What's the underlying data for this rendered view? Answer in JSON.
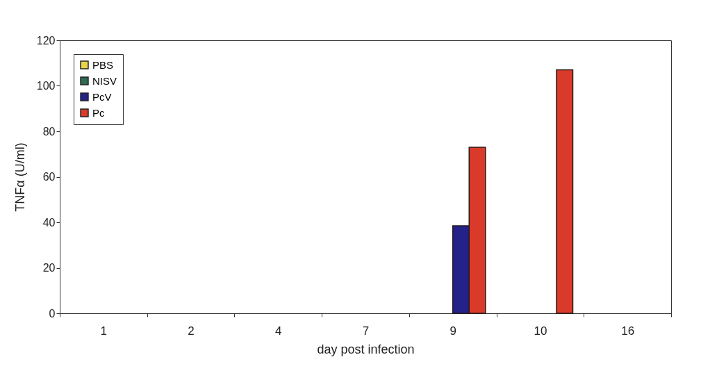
{
  "chart_data": {
    "type": "bar",
    "xlabel": "day post infection",
    "ylabel": "TNFα (U/ml)",
    "categories": [
      "1",
      "2",
      "4",
      "7",
      "9",
      "10",
      "16"
    ],
    "series": [
      {
        "name": "PBS",
        "color": "#e8d44a",
        "values": [
          null,
          null,
          null,
          null,
          null,
          null,
          null
        ]
      },
      {
        "name": "NISV",
        "color": "#2e6b50",
        "values": [
          null,
          null,
          null,
          null,
          null,
          null,
          null
        ]
      },
      {
        "name": "PcV",
        "color": "#22228a",
        "values": [
          null,
          null,
          null,
          null,
          38.5,
          null,
          null
        ]
      },
      {
        "name": "Pc",
        "color": "#d93a2a",
        "values": [
          null,
          null,
          null,
          null,
          73,
          107,
          null
        ]
      }
    ],
    "ylim": [
      0,
      120
    ],
    "yticks": [
      0,
      20,
      40,
      60,
      80,
      100,
      120
    ],
    "grid": false,
    "legend": "top left"
  }
}
